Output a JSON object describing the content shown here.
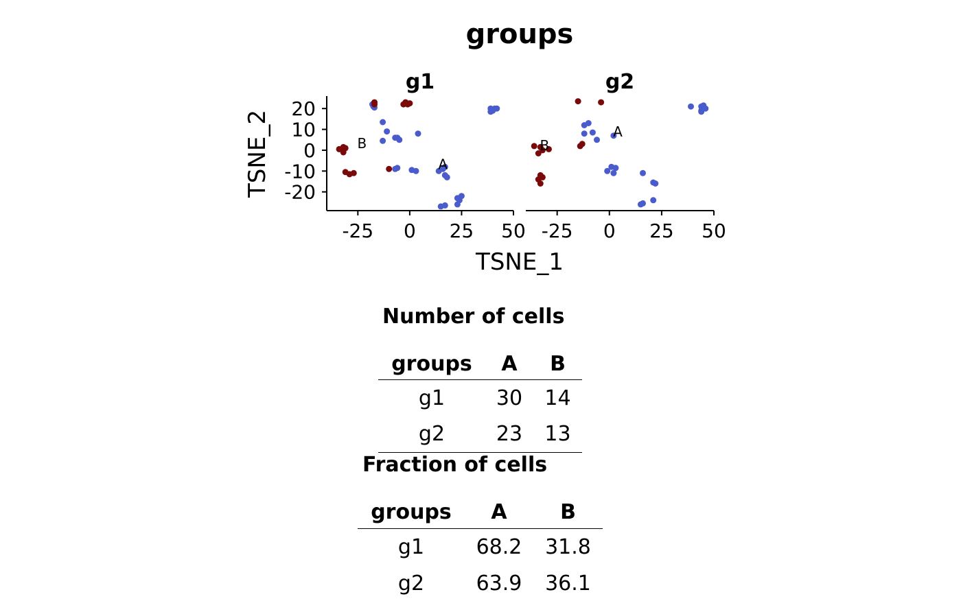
{
  "chart_data": {
    "type": "scatter",
    "title": "groups",
    "xlabel": "TSNE_1",
    "ylabel": "TSNE_2",
    "xlim": [
      -40,
      50
    ],
    "ylim": [
      -29,
      26
    ],
    "x_ticks": [
      "-25",
      "0",
      "25",
      "50"
    ],
    "y_ticks": [
      "20",
      "10",
      "0",
      "-10",
      "-20"
    ],
    "colors": {
      "A": "#4a5bcc",
      "B": "#7a0a0a"
    },
    "panels": [
      {
        "name": "g1",
        "cluster_labels": [
          {
            "label": "B",
            "x": -23,
            "y": 1
          },
          {
            "label": "A",
            "x": 16,
            "y": -9
          }
        ],
        "series": [
          {
            "name": "A",
            "points": [
              [
                -18,
                22
              ],
              [
                -17.5,
                21
              ],
              [
                -17,
                20.5
              ],
              [
                -13,
                13.5
              ],
              [
                -11,
                9
              ],
              [
                -13,
                4.5
              ],
              [
                -7,
                6
              ],
              [
                -5,
                5
              ],
              [
                -6,
                6
              ],
              [
                4,
                8
              ],
              [
                -7,
                -9
              ],
              [
                -6,
                -8.5
              ],
              [
                1,
                -9.5
              ],
              [
                3,
                -10
              ],
              [
                14,
                -10
              ],
              [
                17,
                -8
              ],
              [
                16,
                -9
              ],
              [
                17,
                -12
              ],
              [
                18,
                -13
              ],
              [
                15,
                -27
              ],
              [
                17,
                -26.5
              ],
              [
                23,
                -23
              ],
              [
                25,
                -22
              ],
              [
                24,
                -24
              ],
              [
                23,
                -26
              ],
              [
                39,
                20
              ],
              [
                40,
                19
              ],
              [
                39,
                18.5
              ],
              [
                42,
                20
              ],
              [
                41,
                20
              ]
            ]
          },
          {
            "name": "B",
            "points": [
              [
                -17,
                23
              ],
              [
                -17,
                22
              ],
              [
                -2,
                23
              ],
              [
                0,
                22.5
              ],
              [
                -3,
                22
              ],
              [
                -1,
                22
              ],
              [
                -34,
                0.5
              ],
              [
                -32,
                1.5
              ],
              [
                -31,
                1
              ],
              [
                -32,
                -1
              ],
              [
                -31,
                -10.5
              ],
              [
                -29,
                -11.5
              ],
              [
                -27,
                -11
              ],
              [
                -10,
                -9
              ]
            ]
          }
        ]
      },
      {
        "name": "g2",
        "cluster_labels": [
          {
            "label": "B",
            "x": -31,
            "y": 0
          },
          {
            "label": "A",
            "x": 4,
            "y": 6.5
          }
        ],
        "series": [
          {
            "name": "A",
            "points": [
              [
                -12,
                12
              ],
              [
                -10,
                13
              ],
              [
                -8,
                8.5
              ],
              [
                -12,
                8
              ],
              [
                -6,
                5
              ],
              [
                -1,
                -10
              ],
              [
                1,
                -8
              ],
              [
                3,
                -8.5
              ],
              [
                2,
                -11
              ],
              [
                2,
                7
              ],
              [
                16,
                -11
              ],
              [
                21,
                -15.5
              ],
              [
                22,
                -16
              ],
              [
                21,
                -24
              ],
              [
                15,
                -26
              ],
              [
                16,
                -25.5
              ],
              [
                39,
                21
              ],
              [
                44,
                21
              ],
              [
                45,
                20
              ],
              [
                44,
                19
              ],
              [
                45,
                21.5
              ],
              [
                44,
                18.5
              ],
              [
                46,
                20
              ]
            ]
          },
          {
            "name": "B",
            "points": [
              [
                -15,
                23.5
              ],
              [
                -4,
                23
              ],
              [
                -36,
                2
              ],
              [
                -33,
                1.5
              ],
              [
                -29,
                0.5
              ],
              [
                -32,
                0
              ],
              [
                -34,
                -1.5
              ],
              [
                -33,
                -12
              ],
              [
                -32,
                -13
              ],
              [
                -34,
                -14
              ],
              [
                -33,
                -16
              ],
              [
                -14,
                2
              ],
              [
                -13,
                3
              ]
            ]
          }
        ]
      }
    ]
  },
  "tables": {
    "count": {
      "title": "Number of cells",
      "headers": [
        "groups",
        "A",
        "B"
      ],
      "rows": [
        [
          "g1",
          "30",
          "14"
        ],
        [
          "g2",
          "23",
          "13"
        ]
      ]
    },
    "fraction": {
      "title": "Fraction of cells",
      "headers": [
        "groups",
        "A",
        "B"
      ],
      "rows": [
        [
          "g1",
          "68.2",
          "31.8"
        ],
        [
          "g2",
          "63.9",
          "36.1"
        ]
      ]
    }
  }
}
